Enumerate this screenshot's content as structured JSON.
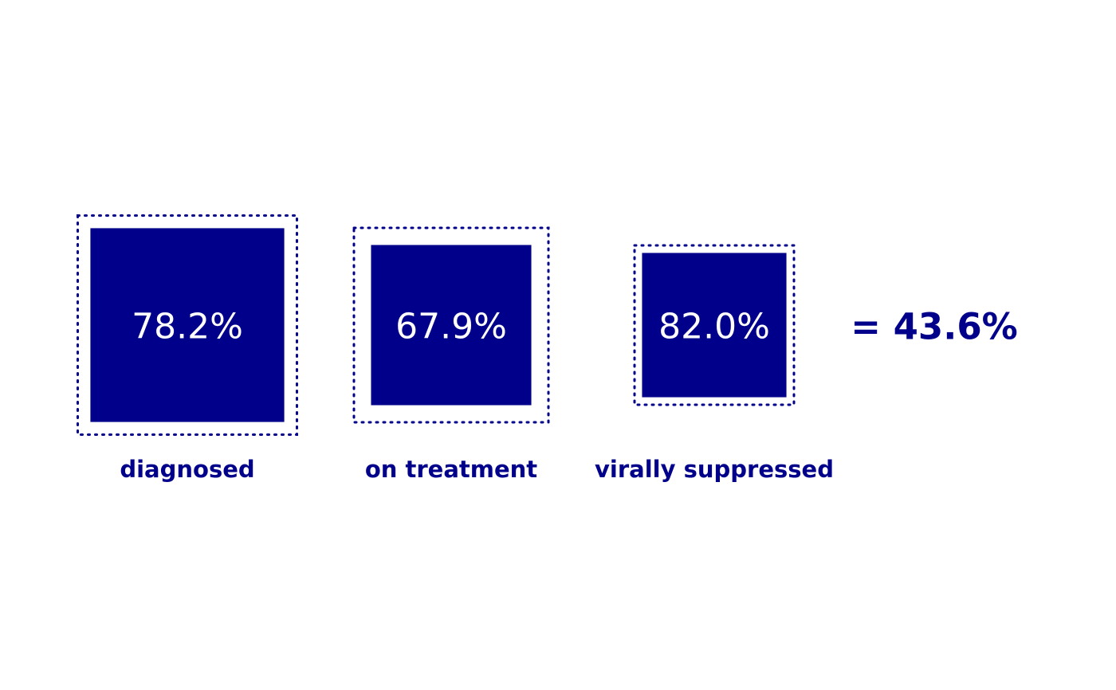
{
  "colors": {
    "primary": "#00008B",
    "text_on_primary": "#FFFFFF",
    "background": "#FFFFFF"
  },
  "chart_data": {
    "type": "cascade-squares",
    "stages": [
      {
        "label": "diagnosed",
        "value_label": "78.2%",
        "value": 0.782
      },
      {
        "label": "on treatment",
        "value_label": "67.9%",
        "value": 0.679
      },
      {
        "label": "virally suppressed",
        "value_label": "82.0%",
        "value": 0.82
      }
    ],
    "result_label": "= 43.6%",
    "result_value": 0.436
  }
}
